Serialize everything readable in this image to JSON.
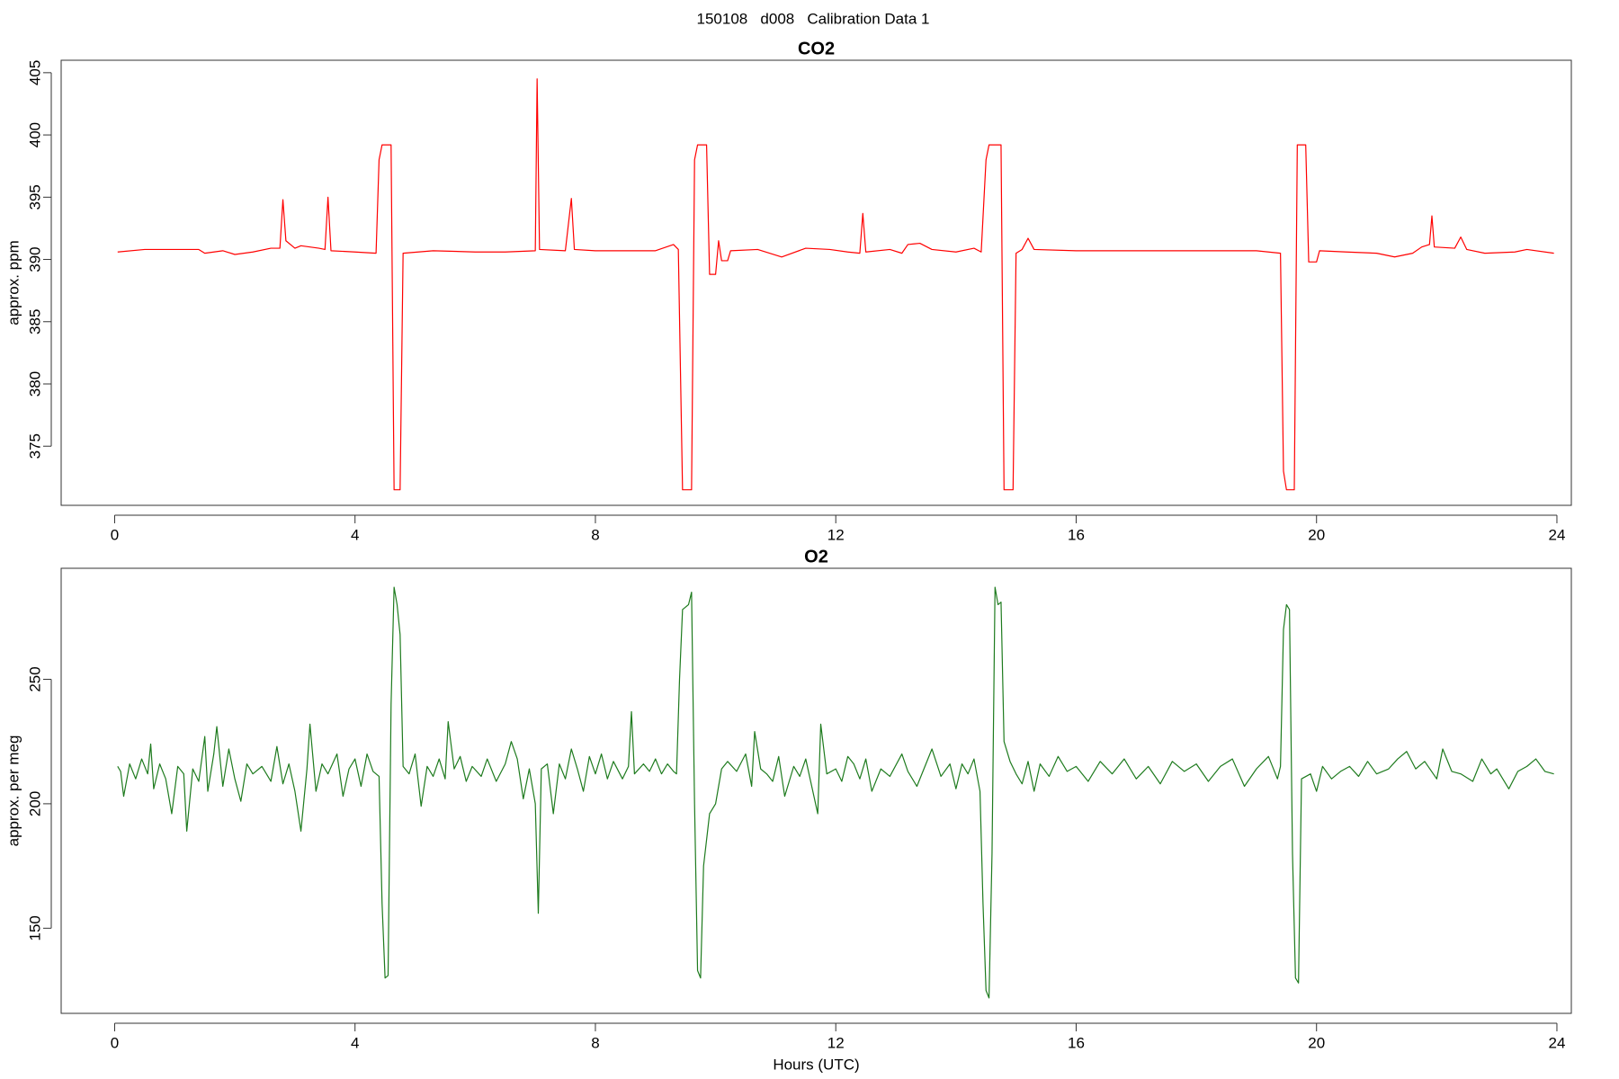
{
  "title": "150108   d008   Calibration Data 1",
  "chart_data": [
    {
      "type": "line",
      "title": "CO2",
      "ylabel": "approx. ppm",
      "color": "#ff0000",
      "xlim": [
        -0.89,
        24.24
      ],
      "xticks": [
        0,
        4,
        8,
        12,
        16,
        20,
        24
      ],
      "ylim": [
        370.25,
        406
      ],
      "yticks": [
        375,
        380,
        385,
        390,
        395,
        400,
        405
      ],
      "x": [
        0.05,
        0.5,
        1.0,
        1.4,
        1.5,
        1.8,
        2.0,
        2.3,
        2.6,
        2.75,
        2.8,
        2.85,
        3.0,
        3.1,
        3.4,
        3.5,
        3.55,
        3.6,
        4.0,
        4.35,
        4.4,
        4.45,
        4.6,
        4.65,
        4.75,
        4.8,
        5.3,
        6.0,
        6.5,
        7.0,
        7.03,
        7.07,
        7.5,
        7.6,
        7.65,
        8.0,
        8.5,
        9.0,
        9.3,
        9.38,
        9.45,
        9.6,
        9.65,
        9.7,
        9.85,
        9.9,
        10.0,
        10.05,
        10.1,
        10.2,
        10.25,
        10.7,
        11.1,
        11.5,
        11.9,
        12.2,
        12.4,
        12.45,
        12.5,
        12.9,
        13.1,
        13.2,
        13.4,
        13.6,
        14.0,
        14.3,
        14.42,
        14.5,
        14.55,
        14.75,
        14.8,
        14.95,
        15.0,
        15.1,
        15.2,
        15.3,
        16,
        17,
        18,
        19,
        19.4,
        19.45,
        19.5,
        19.63,
        19.68,
        19.82,
        19.87,
        20.0,
        20.05,
        20.5,
        21.0,
        21.3,
        21.6,
        21.75,
        21.88,
        21.92,
        21.96,
        22.3,
        22.4,
        22.5,
        22.8,
        23.3,
        23.5,
        23.95
      ],
      "values": [
        390.6,
        390.8,
        390.8,
        390.8,
        390.5,
        390.7,
        390.4,
        390.6,
        390.9,
        390.9,
        394.8,
        391.5,
        390.9,
        391.1,
        390.9,
        390.8,
        395.0,
        390.7,
        390.6,
        390.5,
        398,
        399.2,
        399.2,
        371.5,
        371.5,
        390.5,
        390.7,
        390.6,
        390.6,
        390.7,
        404.5,
        390.8,
        390.7,
        394.9,
        390.8,
        390.7,
        390.7,
        390.7,
        391.2,
        390.8,
        371.5,
        371.5,
        398,
        399.2,
        399.2,
        388.8,
        388.8,
        391.5,
        389.9,
        389.9,
        390.7,
        390.8,
        390.2,
        390.9,
        390.8,
        390.6,
        390.5,
        393.7,
        390.6,
        390.8,
        390.5,
        391.2,
        391.3,
        390.8,
        390.6,
        390.9,
        390.6,
        398,
        399.2,
        399.2,
        371.5,
        371.5,
        390.5,
        390.8,
        391.7,
        390.8,
        390.7,
        390.7,
        390.7,
        390.7,
        390.5,
        373,
        371.5,
        371.5,
        399.2,
        399.2,
        389.8,
        389.8,
        390.7,
        390.6,
        390.5,
        390.2,
        390.5,
        391.0,
        391.2,
        393.5,
        391,
        390.9,
        391.8,
        390.8,
        390.5,
        390.6,
        390.8,
        390.5
      ]
    },
    {
      "type": "line",
      "title": "O2",
      "ylabel": "approx. per meg",
      "xlabel": "Hours (UTC)",
      "color": "#1e7b1e",
      "xlim": [
        -0.89,
        24.24
      ],
      "xticks": [
        0,
        4,
        8,
        12,
        16,
        20,
        24
      ],
      "ylim": [
        115.8,
        294.6
      ],
      "yticks": [
        150,
        200,
        250
      ],
      "x": [
        0.05,
        0.1,
        0.15,
        0.25,
        0.35,
        0.45,
        0.55,
        0.6,
        0.65,
        0.75,
        0.85,
        0.95,
        1.05,
        1.15,
        1.2,
        1.3,
        1.4,
        1.5,
        1.55,
        1.65,
        1.7,
        1.8,
        1.9,
        2.0,
        2.1,
        2.2,
        2.3,
        2.45,
        2.6,
        2.7,
        2.8,
        2.9,
        3.0,
        3.1,
        3.2,
        3.25,
        3.35,
        3.45,
        3.55,
        3.7,
        3.8,
        3.9,
        4.0,
        4.1,
        4.2,
        4.3,
        4.4,
        4.45,
        4.5,
        4.55,
        4.6,
        4.65,
        4.7,
        4.75,
        4.8,
        4.9,
        5.0,
        5.1,
        5.2,
        5.3,
        5.4,
        5.5,
        5.55,
        5.65,
        5.75,
        5.85,
        5.95,
        6.1,
        6.2,
        6.35,
        6.5,
        6.6,
        6.7,
        6.8,
        6.9,
        7.0,
        7.05,
        7.1,
        7.2,
        7.3,
        7.4,
        7.5,
        7.6,
        7.7,
        7.8,
        7.9,
        8.0,
        8.1,
        8.2,
        8.3,
        8.45,
        8.55,
        8.6,
        8.65,
        8.8,
        8.9,
        9.0,
        9.1,
        9.2,
        9.3,
        9.35,
        9.4,
        9.45,
        9.55,
        9.6,
        9.65,
        9.7,
        9.75,
        9.8,
        9.9,
        10.0,
        10.1,
        10.2,
        10.35,
        10.5,
        10.6,
        10.65,
        10.75,
        10.85,
        10.95,
        11.05,
        11.15,
        11.3,
        11.4,
        11.5,
        11.6,
        11.7,
        11.75,
        11.85,
        12.0,
        12.1,
        12.2,
        12.3,
        12.4,
        12.5,
        12.6,
        12.75,
        12.9,
        13.1,
        13.2,
        13.35,
        13.5,
        13.6,
        13.75,
        13.9,
        14.0,
        14.1,
        14.2,
        14.3,
        14.4,
        14.45,
        14.5,
        14.55,
        14.6,
        14.65,
        14.7,
        14.75,
        14.8,
        14.9,
        15.0,
        15.1,
        15.2,
        15.3,
        15.4,
        15.55,
        15.7,
        15.85,
        16.0,
        16.2,
        16.4,
        16.6,
        16.8,
        17.0,
        17.2,
        17.4,
        17.6,
        17.8,
        18.0,
        18.2,
        18.4,
        18.6,
        18.8,
        19.0,
        19.2,
        19.35,
        19.4,
        19.45,
        19.5,
        19.55,
        19.6,
        19.65,
        19.7,
        19.75,
        19.9,
        20.0,
        20.1,
        20.25,
        20.4,
        20.55,
        20.7,
        20.85,
        21.0,
        21.2,
        21.35,
        21.5,
        21.65,
        21.8,
        22.0,
        22.1,
        22.25,
        22.4,
        22.6,
        22.75,
        22.9,
        23.0,
        23.2,
        23.35,
        23.5,
        23.65,
        23.8,
        23.95
      ],
      "values": [
        215,
        213,
        203,
        216,
        210,
        218,
        212,
        224,
        206,
        216,
        210,
        196,
        215,
        212,
        189,
        214,
        209,
        227,
        205,
        220,
        231,
        207,
        222,
        210,
        201,
        216,
        212,
        215,
        209,
        223,
        208,
        216,
        205,
        189,
        214,
        232,
        205,
        216,
        212,
        220,
        203,
        214,
        218,
        207,
        220,
        213,
        211,
        160,
        130,
        131,
        240,
        287,
        280,
        268,
        215,
        212,
        220,
        199,
        215,
        211,
        218,
        210,
        233,
        214,
        219,
        209,
        215,
        211,
        218,
        209,
        216,
        225,
        218,
        202,
        214,
        200,
        156,
        214,
        216,
        196,
        216,
        210,
        222,
        214,
        205,
        219,
        212,
        220,
        210,
        217,
        210,
        215,
        237,
        212,
        216,
        213,
        218,
        212,
        216,
        213,
        212,
        250,
        278,
        280,
        285,
        200,
        133,
        130,
        175,
        196,
        200,
        214,
        217,
        213,
        220,
        207,
        229,
        214,
        212,
        209,
        219,
        203,
        215,
        211,
        218,
        207,
        196,
        232,
        212,
        214,
        209,
        219,
        216,
        210,
        218,
        205,
        214,
        211,
        220,
        213,
        207,
        216,
        222,
        211,
        216,
        206,
        216,
        212,
        218,
        205,
        160,
        125,
        122,
        180,
        287,
        280,
        281,
        225,
        217,
        212,
        208,
        217,
        205,
        216,
        211,
        219,
        213,
        215,
        209,
        217,
        212,
        218,
        210,
        215,
        208,
        217,
        213,
        216,
        209,
        215,
        218,
        207,
        214,
        219,
        210,
        215,
        270,
        280,
        278,
        180,
        130,
        128,
        210,
        212,
        205,
        215,
        210,
        213,
        215,
        211,
        217,
        212,
        214,
        218,
        221,
        214,
        217,
        210,
        222,
        213,
        212,
        209,
        218,
        212,
        214,
        206,
        213,
        215,
        218,
        213,
        212
      ]
    }
  ]
}
